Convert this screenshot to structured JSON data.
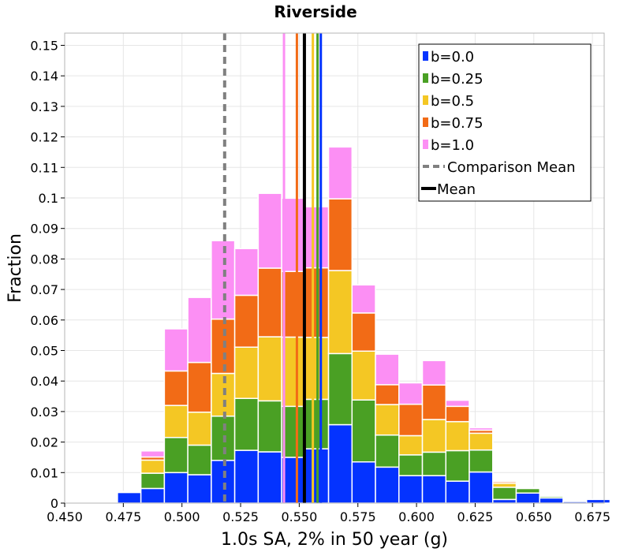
{
  "chart_data": {
    "type": "bar",
    "stacked": true,
    "title": "Riverside",
    "xlabel": "1.0s SA, 2% in 50 year (g)",
    "ylabel": "Fraction",
    "xlim": [
      0.45,
      0.68
    ],
    "ylim": [
      0,
      0.154
    ],
    "grid": true,
    "bin_width": 0.01,
    "x_ticks": [
      0.45,
      0.475,
      0.5,
      0.525,
      0.55,
      0.575,
      0.6,
      0.625,
      0.65,
      0.675
    ],
    "x_tick_labels": [
      "0.450",
      "0.475",
      "0.500",
      "0.525",
      "0.550",
      "0.575",
      "0.600",
      "0.625",
      "0.650",
      "0.675"
    ],
    "y_ticks": [
      0,
      0.01,
      0.02,
      0.03,
      0.04,
      0.05,
      0.06,
      0.07,
      0.08,
      0.09,
      0.1,
      0.11,
      0.12,
      0.13,
      0.14,
      0.15
    ],
    "y_tick_labels": [
      "0",
      "0.01",
      "0.02",
      "0.03",
      "0.04",
      "0.05",
      "0.06",
      "0.07",
      "0.08",
      "0.09",
      "0.1",
      "0.11",
      "0.12",
      "0.13",
      "0.14",
      "0.15"
    ],
    "bin_starts": [
      0.4725,
      0.4825,
      0.4925,
      0.5025,
      0.5125,
      0.5225,
      0.5325,
      0.5425,
      0.5525,
      0.5625,
      0.5725,
      0.5825,
      0.5925,
      0.6025,
      0.6125,
      0.6225,
      0.6325,
      0.6425,
      0.6525,
      0.6625,
      0.6725
    ],
    "series": [
      {
        "name": "b=0.0",
        "color": "#0433ff",
        "values": [
          0.0035,
          0.0048,
          0.01,
          0.0093,
          0.014,
          0.0173,
          0.0168,
          0.015,
          0.0178,
          0.0257,
          0.0135,
          0.0118,
          0.009,
          0.009,
          0.0072,
          0.0102,
          0.0012,
          0.0033,
          0.0017,
          0.0005,
          0.0012
        ]
      },
      {
        "name": "b=0.25",
        "color": "#4aa024",
        "values": [
          0.0,
          0.005,
          0.0115,
          0.0097,
          0.0145,
          0.017,
          0.0167,
          0.0167,
          0.0162,
          0.0233,
          0.0203,
          0.0105,
          0.0068,
          0.0077,
          0.01,
          0.0072,
          0.004,
          0.0015,
          0.0005,
          0.0,
          0.0
        ]
      },
      {
        "name": "b=0.5",
        "color": "#f4c724",
        "values": [
          0.0,
          0.0043,
          0.0105,
          0.0108,
          0.014,
          0.0168,
          0.021,
          0.0227,
          0.0203,
          0.0272,
          0.016,
          0.01,
          0.0063,
          0.0107,
          0.0095,
          0.0055,
          0.0013,
          0.0003,
          0.0,
          0.0,
          0.0
        ]
      },
      {
        "name": "b=0.75",
        "color": "#f26b16",
        "values": [
          0.0003,
          0.001,
          0.0113,
          0.0163,
          0.0178,
          0.017,
          0.0225,
          0.0215,
          0.0228,
          0.0235,
          0.0125,
          0.0065,
          0.0103,
          0.0113,
          0.005,
          0.001,
          0.0005,
          0.0,
          0.0,
          0.0,
          0.0
        ]
      },
      {
        "name": "b=1.0",
        "color": "#fc8ff4",
        "values": [
          0.0,
          0.002,
          0.0138,
          0.0213,
          0.0257,
          0.0153,
          0.0245,
          0.024,
          0.02,
          0.017,
          0.0092,
          0.01,
          0.007,
          0.008,
          0.002,
          0.0008,
          0.0,
          0.0,
          0.0,
          0.0,
          0.0
        ]
      }
    ],
    "mean_lines": [
      {
        "name": "b=1.0 mean",
        "color": "#fc8ff4",
        "x": 0.5435
      },
      {
        "name": "b=0.75 mean",
        "color": "#f26b16",
        "x": 0.549
      },
      {
        "name": "b=0.5 mean",
        "color": "#f4c724",
        "x": 0.5558
      },
      {
        "name": "b=0.25 mean",
        "color": "#4aa024",
        "x": 0.5578
      },
      {
        "name": "b=0.0 mean",
        "color": "#0433ff",
        "x": 0.5592
      }
    ],
    "comparison_mean": {
      "name": "Comparison Mean",
      "x": 0.5182,
      "color": "#808080"
    },
    "mean": {
      "name": "Mean",
      "x": 0.5522,
      "color": "#000000"
    },
    "legend": {
      "position": "top-right",
      "entries": [
        {
          "label": "b=0.0",
          "kind": "box",
          "color": "#0433ff"
        },
        {
          "label": "b=0.25",
          "kind": "box",
          "color": "#4aa024"
        },
        {
          "label": "b=0.5",
          "kind": "box",
          "color": "#f4c724"
        },
        {
          "label": "b=0.75",
          "kind": "box",
          "color": "#f26b16"
        },
        {
          "label": "b=1.0",
          "kind": "box",
          "color": "#fc8ff4"
        },
        {
          "label": "Comparison Mean",
          "kind": "dashed",
          "color": "#808080"
        },
        {
          "label": "Mean",
          "kind": "line",
          "color": "#000000"
        }
      ]
    }
  }
}
